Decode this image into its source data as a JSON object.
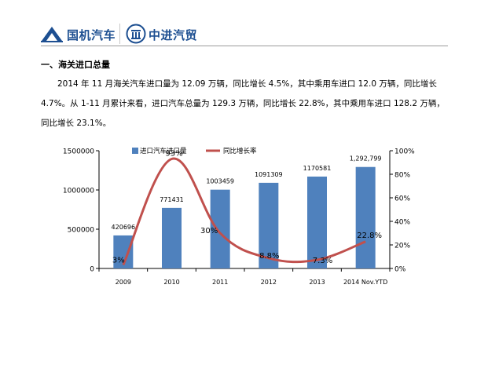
{
  "header": {
    "logo1_text": "国机汽车",
    "logo2_text": "中进汽贸"
  },
  "section": {
    "heading": "一、海关进口总量"
  },
  "body": {
    "line1": "2014 年 11 月海关汽车进口量为 12.09 万辆，同比增长 4.5%，其中乘用车进口 12.0 万辆，同比增长",
    "line2": "4.7%。从 1-11 月累计来看，进口汽车总量为 129.3 万辆，同比增长 22.8%，其中乘用车进口 128.2 万辆，",
    "line3": "同比增长 23.1%。"
  },
  "colors": {
    "brand": "#1d4f91",
    "bar": "#4f81bd",
    "line": "#c0504d"
  },
  "chart_data": {
    "type": "bar+line",
    "categories": [
      "2009",
      "2010",
      "2011",
      "2012",
      "2013",
      "2014 Nov.YTD"
    ],
    "series": [
      {
        "name": "进口汽车进口量",
        "type": "bar",
        "axis": "left",
        "values": [
          420696,
          771431,
          1003459,
          1091309,
          1170581,
          1292799
        ],
        "labels": [
          "420696",
          "771431",
          "1003459",
          "1091309",
          "1170581",
          "1,292,799"
        ]
      },
      {
        "name": "同比增长率",
        "type": "line",
        "axis": "right",
        "values": [
          3,
          93,
          30,
          8.8,
          7.3,
          22.8
        ],
        "labels": [
          "3%",
          "93%",
          "30%",
          "8.8%",
          "7.3%",
          "22.8%"
        ]
      }
    ],
    "y_left": {
      "min": 0,
      "max": 1500000,
      "ticks": [
        "0",
        "500000",
        "1000000",
        "1500000"
      ],
      "tick_values": [
        0,
        500000,
        1000000,
        1500000
      ]
    },
    "y_right": {
      "min": 0,
      "max": 100,
      "ticks": [
        "0%",
        "20%",
        "40%",
        "60%",
        "80%",
        "100%"
      ],
      "tick_values": [
        0,
        20,
        40,
        60,
        80,
        100
      ]
    },
    "legend_position": "top",
    "grid": false
  }
}
